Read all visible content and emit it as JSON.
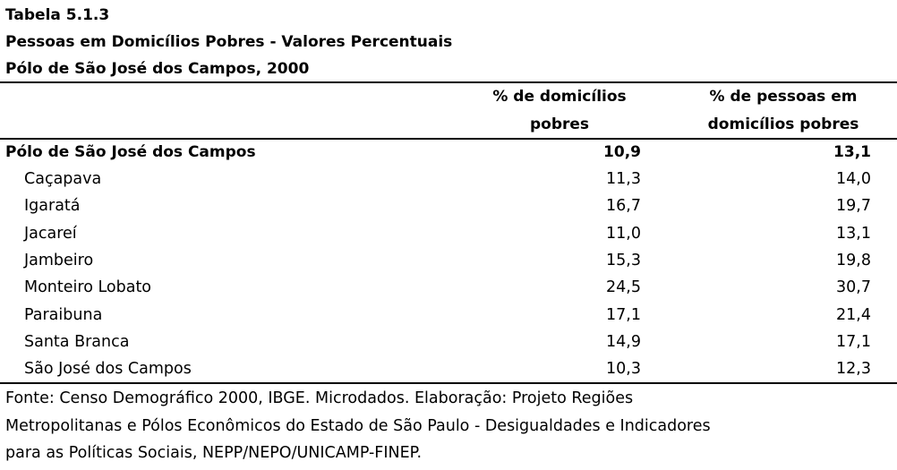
{
  "header": {
    "title": "Tabela 5.1.3",
    "subtitle": "Pessoas em Domicílios Pobres - Valores Percentuais",
    "place": "Pólo de São José dos Campos, 2000"
  },
  "table": {
    "columns": [
      [
        "% de domicílios",
        "pobres"
      ],
      [
        "% de pessoas em",
        "domicílios pobres"
      ]
    ],
    "total": [
      "Pólo de São José dos Campos",
      "10,9",
      "13,1"
    ],
    "rows": [
      [
        "Caçapava",
        "11,3",
        "14,0"
      ],
      [
        "Igaratá",
        "16,7",
        "19,7"
      ],
      [
        "Jacareí",
        "11,0",
        "13,1"
      ],
      [
        "Jambeiro",
        "15,3",
        "19,8"
      ],
      [
        "Monteiro Lobato",
        "24,5",
        "30,7"
      ],
      [
        "Paraibuna",
        "17,1",
        "21,4"
      ],
      [
        "Santa Branca",
        "14,9",
        "17,1"
      ],
      [
        "São José dos Campos",
        "10,3",
        "12,3"
      ]
    ]
  },
  "footer": [
    "Fonte: Censo Demográfico 2000, IBGE. Microdados. Elaboração: Projeto Regiões",
    "Metropolitanas e Pólos Econômicos do Estado de São Paulo - Desigualdades e Indicadores",
    "para as Políticas Sociais, NEPP/NEPO/UNICAMP-FINEP."
  ]
}
